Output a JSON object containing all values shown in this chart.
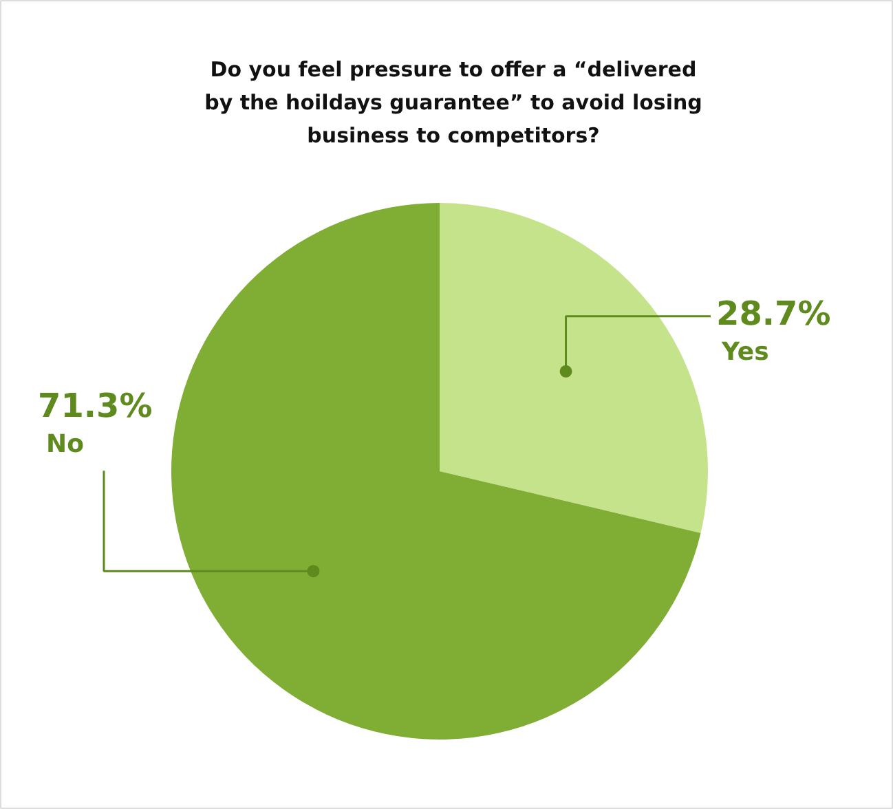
{
  "chart_data": {
    "type": "pie",
    "title": "Do you feel pressure to offer a “delivered by the hoildays guarantee” to avoid losing business to competitors?",
    "categories": [
      "Yes",
      "No"
    ],
    "values": [
      28.7,
      71.3
    ],
    "colors": [
      "#c5e38a",
      "#80ad34"
    ],
    "value_labels": [
      "28.7%",
      "71.3%"
    ]
  }
}
